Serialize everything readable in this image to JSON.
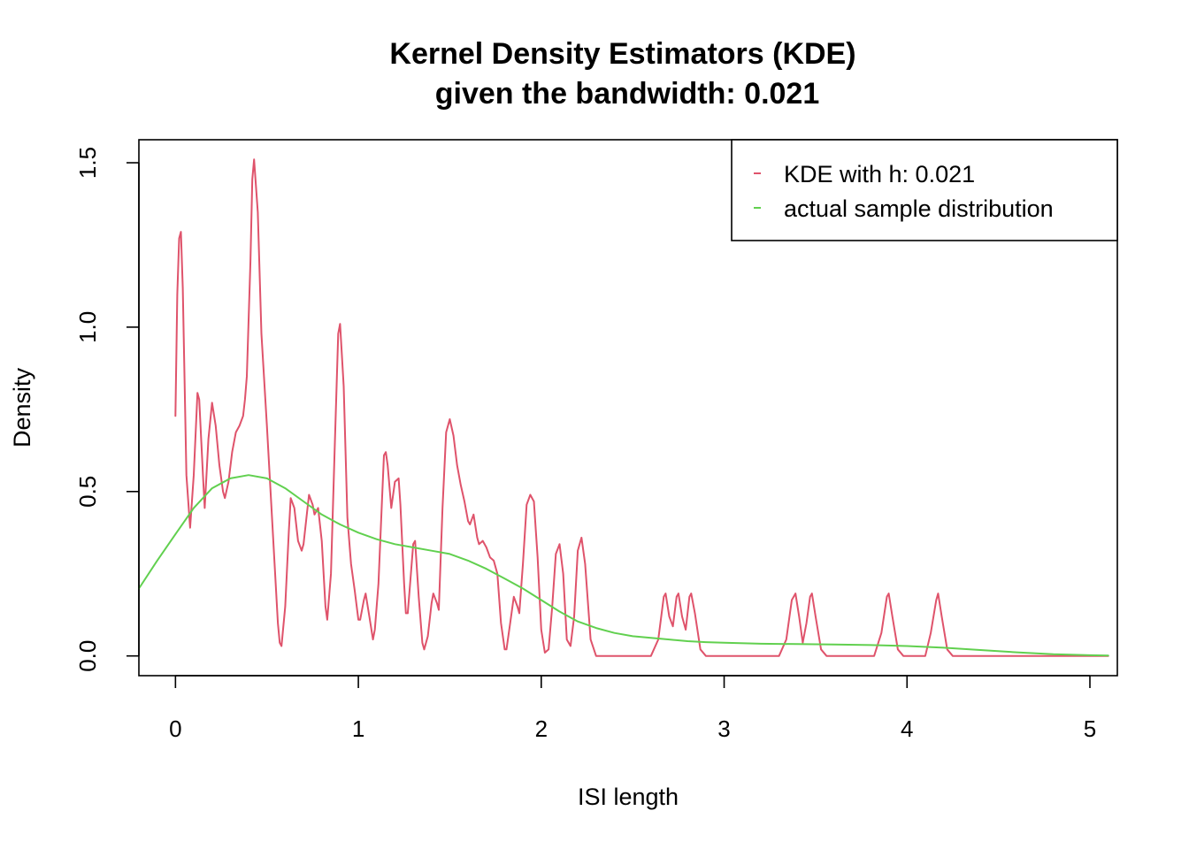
{
  "chart_data": {
    "type": "line",
    "title": "Kernel Density Estimators (KDE)",
    "subtitle": "given the  bandwidth: 0.021",
    "xlabel": "ISI length",
    "ylabel": "Density",
    "xlim": [
      -0.2,
      5.15
    ],
    "ylim": [
      -0.06,
      1.57
    ],
    "x_ticks": [
      0,
      1,
      2,
      3,
      4,
      5
    ],
    "x_tick_labels": [
      "0",
      "1",
      "2",
      "3",
      "4",
      "5"
    ],
    "y_ticks": [
      0.0,
      0.5,
      1.0,
      1.5
    ],
    "y_tick_labels": [
      "0.0",
      "0.5",
      "1.0",
      "1.5"
    ],
    "grid": false,
    "legend_position": "top-right",
    "series": [
      {
        "name": "KDE with  h: 0.021",
        "color": "#DF536B",
        "points": [
          [
            0.0,
            0.73
          ],
          [
            0.01,
            1.1
          ],
          [
            0.02,
            1.27
          ],
          [
            0.03,
            1.29
          ],
          [
            0.04,
            1.12
          ],
          [
            0.06,
            0.55
          ],
          [
            0.08,
            0.39
          ],
          [
            0.1,
            0.55
          ],
          [
            0.12,
            0.8
          ],
          [
            0.13,
            0.78
          ],
          [
            0.15,
            0.55
          ],
          [
            0.16,
            0.45
          ],
          [
            0.18,
            0.66
          ],
          [
            0.2,
            0.77
          ],
          [
            0.22,
            0.7
          ],
          [
            0.24,
            0.58
          ],
          [
            0.26,
            0.5
          ],
          [
            0.27,
            0.48
          ],
          [
            0.29,
            0.53
          ],
          [
            0.31,
            0.62
          ],
          [
            0.33,
            0.68
          ],
          [
            0.35,
            0.7
          ],
          [
            0.37,
            0.73
          ],
          [
            0.38,
            0.78
          ],
          [
            0.39,
            0.85
          ],
          [
            0.41,
            1.2
          ],
          [
            0.42,
            1.45
          ],
          [
            0.43,
            1.51
          ],
          [
            0.45,
            1.35
          ],
          [
            0.47,
            0.98
          ],
          [
            0.5,
            0.7
          ],
          [
            0.53,
            0.4
          ],
          [
            0.56,
            0.1
          ],
          [
            0.57,
            0.04
          ],
          [
            0.58,
            0.03
          ],
          [
            0.6,
            0.15
          ],
          [
            0.62,
            0.38
          ],
          [
            0.63,
            0.48
          ],
          [
            0.65,
            0.45
          ],
          [
            0.67,
            0.35
          ],
          [
            0.69,
            0.32
          ],
          [
            0.7,
            0.34
          ],
          [
            0.72,
            0.44
          ],
          [
            0.73,
            0.49
          ],
          [
            0.75,
            0.46
          ],
          [
            0.76,
            0.43
          ],
          [
            0.78,
            0.45
          ],
          [
            0.8,
            0.35
          ],
          [
            0.82,
            0.15
          ],
          [
            0.83,
            0.11
          ],
          [
            0.85,
            0.25
          ],
          [
            0.87,
            0.62
          ],
          [
            0.89,
            0.98
          ],
          [
            0.9,
            1.01
          ],
          [
            0.92,
            0.82
          ],
          [
            0.94,
            0.42
          ],
          [
            0.96,
            0.28
          ],
          [
            0.98,
            0.2
          ],
          [
            1.0,
            0.11
          ],
          [
            1.01,
            0.11
          ],
          [
            1.03,
            0.17
          ],
          [
            1.04,
            0.19
          ],
          [
            1.06,
            0.12
          ],
          [
            1.08,
            0.05
          ],
          [
            1.09,
            0.08
          ],
          [
            1.11,
            0.22
          ],
          [
            1.13,
            0.48
          ],
          [
            1.14,
            0.61
          ],
          [
            1.15,
            0.62
          ],
          [
            1.16,
            0.58
          ],
          [
            1.18,
            0.45
          ],
          [
            1.2,
            0.53
          ],
          [
            1.22,
            0.54
          ],
          [
            1.23,
            0.46
          ],
          [
            1.25,
            0.22
          ],
          [
            1.26,
            0.13
          ],
          [
            1.27,
            0.13
          ],
          [
            1.28,
            0.2
          ],
          [
            1.3,
            0.34
          ],
          [
            1.31,
            0.35
          ],
          [
            1.33,
            0.18
          ],
          [
            1.35,
            0.04
          ],
          [
            1.36,
            0.02
          ],
          [
            1.38,
            0.06
          ],
          [
            1.4,
            0.16
          ],
          [
            1.41,
            0.19
          ],
          [
            1.43,
            0.16
          ],
          [
            1.44,
            0.14
          ],
          [
            1.46,
            0.45
          ],
          [
            1.48,
            0.68
          ],
          [
            1.5,
            0.72
          ],
          [
            1.52,
            0.67
          ],
          [
            1.54,
            0.58
          ],
          [
            1.56,
            0.52
          ],
          [
            1.58,
            0.47
          ],
          [
            1.6,
            0.41
          ],
          [
            1.61,
            0.4
          ],
          [
            1.63,
            0.43
          ],
          [
            1.65,
            0.36
          ],
          [
            1.66,
            0.34
          ],
          [
            1.68,
            0.35
          ],
          [
            1.7,
            0.33
          ],
          [
            1.72,
            0.3
          ],
          [
            1.74,
            0.29
          ],
          [
            1.76,
            0.25
          ],
          [
            1.78,
            0.1
          ],
          [
            1.8,
            0.02
          ],
          [
            1.81,
            0.02
          ],
          [
            1.83,
            0.1
          ],
          [
            1.85,
            0.18
          ],
          [
            1.87,
            0.15
          ],
          [
            1.88,
            0.13
          ],
          [
            1.9,
            0.28
          ],
          [
            1.92,
            0.46
          ],
          [
            1.94,
            0.49
          ],
          [
            1.96,
            0.47
          ],
          [
            1.98,
            0.3
          ],
          [
            2.0,
            0.08
          ],
          [
            2.02,
            0.01
          ],
          [
            2.04,
            0.02
          ],
          [
            2.06,
            0.15
          ],
          [
            2.08,
            0.31
          ],
          [
            2.1,
            0.34
          ],
          [
            2.12,
            0.25
          ],
          [
            2.14,
            0.05
          ],
          [
            2.16,
            0.03
          ],
          [
            2.18,
            0.12
          ],
          [
            2.2,
            0.32
          ],
          [
            2.22,
            0.36
          ],
          [
            2.24,
            0.28
          ],
          [
            2.27,
            0.05
          ],
          [
            2.3,
            0.0
          ],
          [
            2.5,
            0.0
          ],
          [
            2.6,
            0.0
          ],
          [
            2.64,
            0.05
          ],
          [
            2.67,
            0.18
          ],
          [
            2.68,
            0.19
          ],
          [
            2.7,
            0.12
          ],
          [
            2.72,
            0.09
          ],
          [
            2.74,
            0.18
          ],
          [
            2.75,
            0.19
          ],
          [
            2.77,
            0.12
          ],
          [
            2.79,
            0.08
          ],
          [
            2.81,
            0.18
          ],
          [
            2.82,
            0.19
          ],
          [
            2.84,
            0.13
          ],
          [
            2.87,
            0.02
          ],
          [
            2.9,
            0.0
          ],
          [
            3.3,
            0.0
          ],
          [
            3.34,
            0.05
          ],
          [
            3.37,
            0.17
          ],
          [
            3.39,
            0.19
          ],
          [
            3.41,
            0.12
          ],
          [
            3.43,
            0.04
          ],
          [
            3.45,
            0.1
          ],
          [
            3.47,
            0.18
          ],
          [
            3.48,
            0.19
          ],
          [
            3.5,
            0.12
          ],
          [
            3.53,
            0.02
          ],
          [
            3.56,
            0.0
          ],
          [
            3.82,
            0.0
          ],
          [
            3.86,
            0.07
          ],
          [
            3.89,
            0.18
          ],
          [
            3.9,
            0.19
          ],
          [
            3.92,
            0.12
          ],
          [
            3.95,
            0.02
          ],
          [
            3.98,
            0.0
          ],
          [
            4.1,
            0.0
          ],
          [
            4.13,
            0.07
          ],
          [
            4.16,
            0.17
          ],
          [
            4.17,
            0.19
          ],
          [
            4.19,
            0.12
          ],
          [
            4.22,
            0.02
          ],
          [
            4.25,
            0.0
          ],
          [
            5.1,
            0.0
          ]
        ]
      },
      {
        "name": "actual sample distribution",
        "color": "#61D04F",
        "points": [
          [
            -0.2,
            0.205
          ],
          [
            -0.1,
            0.29
          ],
          [
            0.0,
            0.37
          ],
          [
            0.1,
            0.45
          ],
          [
            0.2,
            0.51
          ],
          [
            0.3,
            0.54
          ],
          [
            0.4,
            0.55
          ],
          [
            0.5,
            0.54
          ],
          [
            0.6,
            0.51
          ],
          [
            0.7,
            0.47
          ],
          [
            0.8,
            0.43
          ],
          [
            0.9,
            0.4
          ],
          [
            1.0,
            0.375
          ],
          [
            1.1,
            0.355
          ],
          [
            1.2,
            0.34
          ],
          [
            1.3,
            0.33
          ],
          [
            1.4,
            0.32
          ],
          [
            1.5,
            0.31
          ],
          [
            1.6,
            0.29
          ],
          [
            1.7,
            0.265
          ],
          [
            1.8,
            0.235
          ],
          [
            1.9,
            0.205
          ],
          [
            2.0,
            0.17
          ],
          [
            2.1,
            0.135
          ],
          [
            2.2,
            0.105
          ],
          [
            2.3,
            0.085
          ],
          [
            2.4,
            0.07
          ],
          [
            2.5,
            0.06
          ],
          [
            2.6,
            0.055
          ],
          [
            2.7,
            0.05
          ],
          [
            2.8,
            0.045
          ],
          [
            2.9,
            0.042
          ],
          [
            3.0,
            0.04
          ],
          [
            3.2,
            0.037
          ],
          [
            3.4,
            0.036
          ],
          [
            3.6,
            0.035
          ],
          [
            3.8,
            0.033
          ],
          [
            4.0,
            0.03
          ],
          [
            4.2,
            0.025
          ],
          [
            4.4,
            0.018
          ],
          [
            4.6,
            0.011
          ],
          [
            4.8,
            0.005
          ],
          [
            5.0,
            0.002
          ],
          [
            5.1,
            0.001
          ]
        ]
      }
    ]
  }
}
